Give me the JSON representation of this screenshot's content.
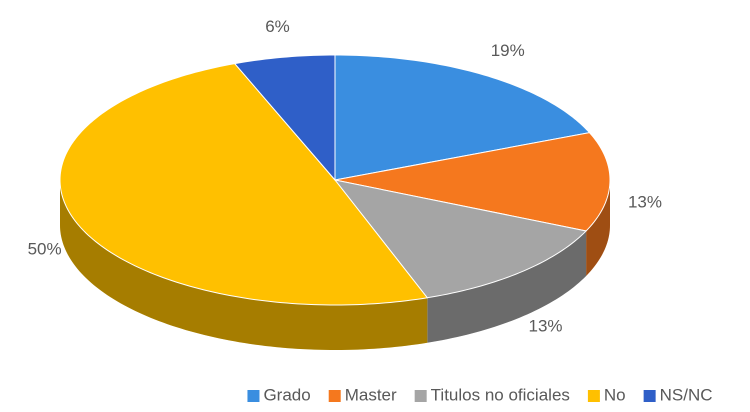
{
  "chart_data": {
    "type": "pie3d",
    "categories": [
      "Grado",
      "Master",
      "Titulos no oficiales",
      "No",
      "NS/NC"
    ],
    "values": [
      19,
      13,
      13,
      50,
      6
    ],
    "value_labels": [
      "19%",
      "13%",
      "13%",
      "50%",
      "6%"
    ],
    "colors": [
      "#3a8ee0",
      "#f5781e",
      "#a5a5a5",
      "#ffc000",
      "#2f5fc8"
    ],
    "legend": "bottom"
  }
}
